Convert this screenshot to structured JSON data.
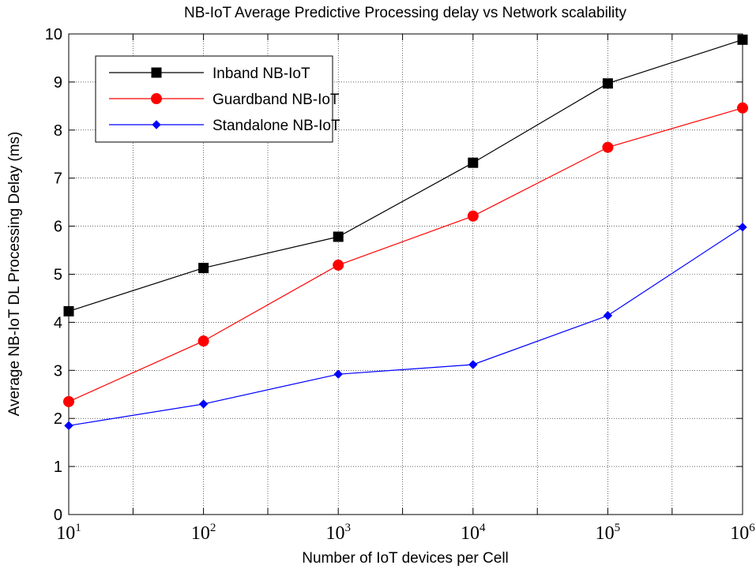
{
  "chart_data": {
    "type": "line",
    "title": "NB-IoT Average Predictive Processing delay vs Network scalability",
    "xlabel": "Number of IoT devices per Cell",
    "ylabel": "Average NB-IoT DL Processing Delay (ms)",
    "x_scale": "log",
    "x": [
      10,
      100,
      1000,
      10000,
      100000,
      1000000
    ],
    "x_tick_labels": [
      {
        "base": "10",
        "exp": "1"
      },
      {
        "base": "10",
        "exp": "2"
      },
      {
        "base": "10",
        "exp": "3"
      },
      {
        "base": "10",
        "exp": "4"
      },
      {
        "base": "10",
        "exp": "5"
      },
      {
        "base": "10",
        "exp": "6"
      }
    ],
    "xlim": [
      10,
      1000000
    ],
    "ylim": [
      0,
      10
    ],
    "y_ticks": [
      "0",
      "1",
      "2",
      "3",
      "4",
      "5",
      "6",
      "7",
      "8",
      "9",
      "10"
    ],
    "grid": true,
    "legend_position": "top-left",
    "series": [
      {
        "name": "Inband NB-IoT",
        "color": "#000000",
        "marker": "square",
        "values": [
          4.23,
          5.13,
          5.78,
          7.32,
          8.97,
          9.88
        ]
      },
      {
        "name": "Guardband NB-IoT",
        "color": "#ff0000",
        "marker": "circle",
        "values": [
          2.35,
          3.61,
          5.19,
          6.21,
          7.64,
          8.46
        ]
      },
      {
        "name": "Standalone NB-IoT",
        "color": "#0000ff",
        "marker": "diamond",
        "values": [
          1.85,
          2.3,
          2.92,
          3.12,
          4.14,
          5.98
        ]
      }
    ]
  }
}
